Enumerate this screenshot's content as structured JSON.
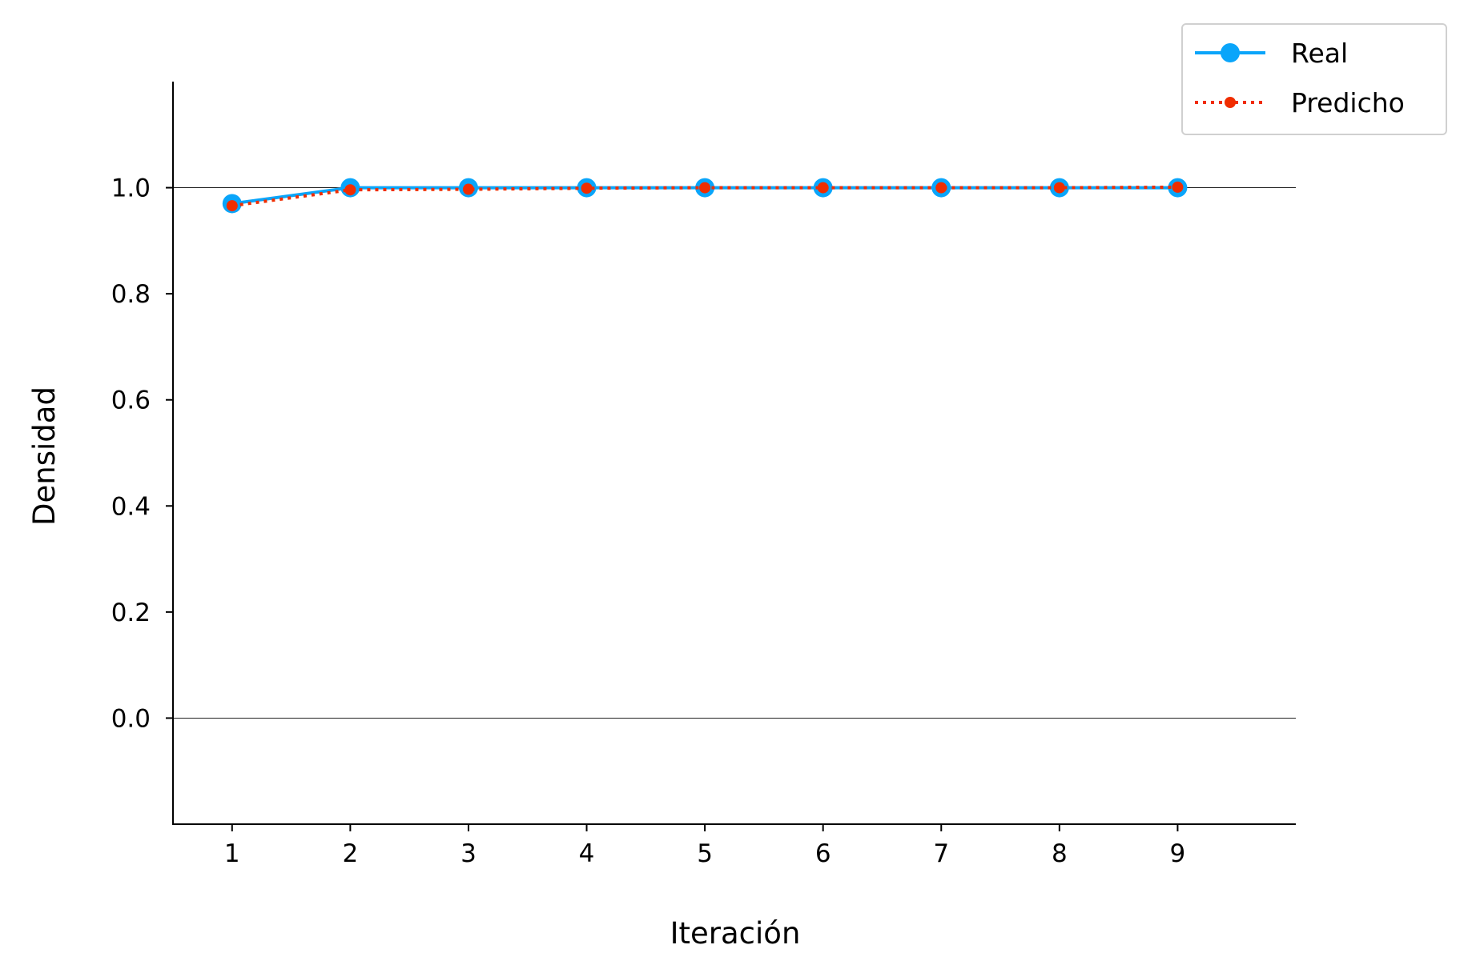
{
  "chart_data": {
    "type": "line",
    "xlabel": "Iteración",
    "ylabel": "Densidad",
    "x": [
      1,
      2,
      3,
      4,
      5,
      6,
      7,
      8,
      9
    ],
    "xlim": [
      0.5,
      10
    ],
    "ylim": [
      -0.2,
      1.2
    ],
    "xticks": [
      "1",
      "2",
      "3",
      "4",
      "5",
      "6",
      "7",
      "8",
      "9"
    ],
    "yticks": [
      "0.0",
      "0.2",
      "0.4",
      "0.6",
      "0.8",
      "1.0"
    ],
    "ytick_values": [
      0.0,
      0.2,
      0.4,
      0.6,
      0.8,
      1.0
    ],
    "reference_lines": [
      0.0,
      1.0
    ],
    "grid": false,
    "legend_position": "top-right",
    "series": [
      {
        "name": "Real",
        "color": "#0AA5FA",
        "style": "solid",
        "marker": "circle-large",
        "values": [
          0.97,
          1.0,
          1.0,
          1.0,
          1.0,
          1.0,
          1.0,
          1.0,
          1.0
        ]
      },
      {
        "name": "Predicho",
        "color": "#F02D00",
        "style": "dotted",
        "marker": "circle-small",
        "values": [
          0.966,
          0.996,
          0.997,
          0.999,
          1.0,
          1.0,
          1.0,
          1.0,
          1.001
        ]
      }
    ]
  }
}
